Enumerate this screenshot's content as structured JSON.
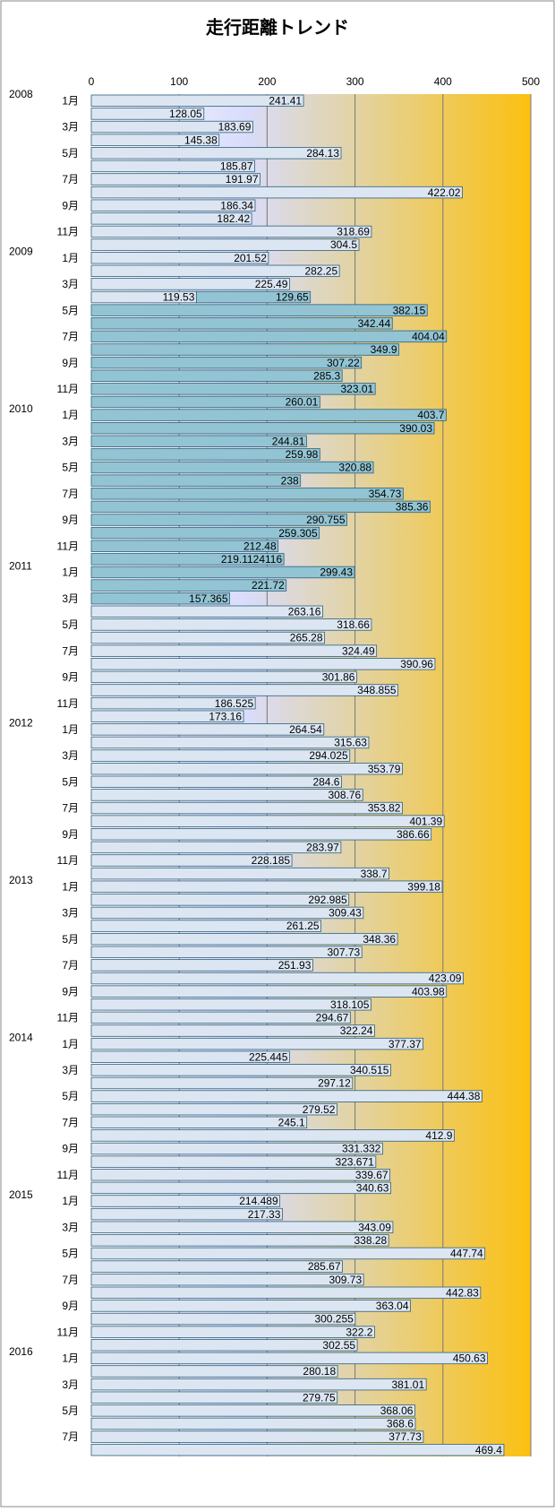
{
  "chart_data": {
    "type": "bar",
    "orientation": "horizontal",
    "stacked": true,
    "title": "走行距離トレンド",
    "years": [
      "2008",
      "2009",
      "2010",
      "2011",
      "2012",
      "2013",
      "2014",
      "2015",
      "2016"
    ],
    "categories": [
      "1月",
      null,
      "3月",
      null,
      "5月",
      null,
      "7月",
      null,
      "9月",
      null,
      "11月",
      null,
      "1月",
      null,
      "3月",
      null,
      "5月",
      null,
      "7月",
      null,
      "9月",
      null,
      "11月",
      null,
      "1月",
      null,
      "3月",
      null,
      "5月",
      null,
      "7月",
      null,
      "9月",
      null,
      "11月",
      null,
      "1月",
      null,
      "3月",
      null,
      "5月",
      null,
      "7月",
      null,
      "9月",
      null,
      "11月",
      null,
      "1月",
      null,
      "3月",
      null,
      "5月",
      null,
      "7月",
      null,
      "9月",
      null,
      "11月",
      null,
      "1月",
      null,
      "3月",
      null,
      "5月",
      null,
      "7月",
      null,
      "9月",
      null,
      "11月",
      null,
      "1月",
      null,
      "3月",
      null,
      "5月",
      null,
      "7月",
      null,
      "9月",
      null,
      "11月",
      null,
      "1月",
      null,
      "3月",
      null,
      "5月",
      null,
      "7月",
      null,
      "9月",
      null,
      "11月",
      null,
      "1月",
      null,
      "3月",
      null,
      "5月",
      null,
      "7月",
      null
    ],
    "series": [
      {
        "color": "#dce6f2",
        "values": [
          241.41,
          128.05,
          183.69,
          145.38,
          284.13,
          185.87,
          191.97,
          422.02,
          186.34,
          182.42,
          318.69,
          304.5,
          201.52,
          282.25,
          225.49,
          119.53,
          null,
          null,
          null,
          null,
          null,
          null,
          null,
          null,
          null,
          null,
          null,
          null,
          null,
          null,
          null,
          null,
          null,
          null,
          null,
          null,
          null,
          null,
          null,
          263.16,
          318.66,
          265.28,
          324.49,
          390.96,
          301.86,
          348.855,
          186.525,
          173.16,
          264.54,
          315.63,
          294.025,
          353.79,
          284.6,
          308.76,
          353.82,
          401.39,
          386.66,
          283.97,
          228.185,
          338.7,
          399.18,
          292.985,
          309.43,
          261.25,
          348.36,
          307.73,
          251.93,
          423.09,
          403.98,
          318.105,
          294.67,
          322.24,
          377.37,
          225.445,
          340.515,
          297.12,
          444.38,
          279.52,
          245.1,
          412.9,
          331.332,
          323.671,
          339.67,
          340.63,
          214.489,
          217.33,
          343.09,
          338.28,
          447.74,
          285.67,
          309.73,
          442.83,
          363.04,
          300.255,
          322.2,
          302.55,
          450.63,
          280.18,
          381.01,
          279.75,
          368.06,
          368.6,
          377.73,
          469.4
        ]
      },
      {
        "color": "#92c4d3",
        "values": [
          null,
          null,
          null,
          null,
          null,
          null,
          null,
          null,
          null,
          null,
          null,
          null,
          null,
          null,
          null,
          129.65,
          382.15,
          342.44,
          404.04,
          349.9,
          307.22,
          285.3,
          323.01,
          260.01,
          403.7,
          390.03,
          244.81,
          259.98,
          320.88,
          238,
          354.73,
          385.36,
          290.755,
          259.305,
          212.48,
          219.1124116,
          299.43,
          221.72,
          157.365,
          null,
          null,
          null,
          null,
          null,
          null,
          null,
          null,
          null,
          null,
          null,
          null,
          null,
          null,
          null,
          null,
          null,
          null,
          null,
          null,
          null,
          null,
          null,
          null,
          null,
          null,
          null,
          null,
          null,
          null,
          null,
          null,
          null,
          null,
          null,
          null,
          null,
          null,
          null,
          null,
          null,
          null,
          null,
          null,
          null,
          null,
          null,
          null,
          null,
          null,
          null,
          null,
          null,
          null,
          null,
          null,
          null,
          null,
          null,
          null,
          null,
          null,
          null,
          null,
          null
        ]
      }
    ],
    "xlim": [
      0,
      500
    ],
    "xticks": [
      0,
      100,
      200,
      300,
      400,
      500
    ],
    "grid": true
  }
}
